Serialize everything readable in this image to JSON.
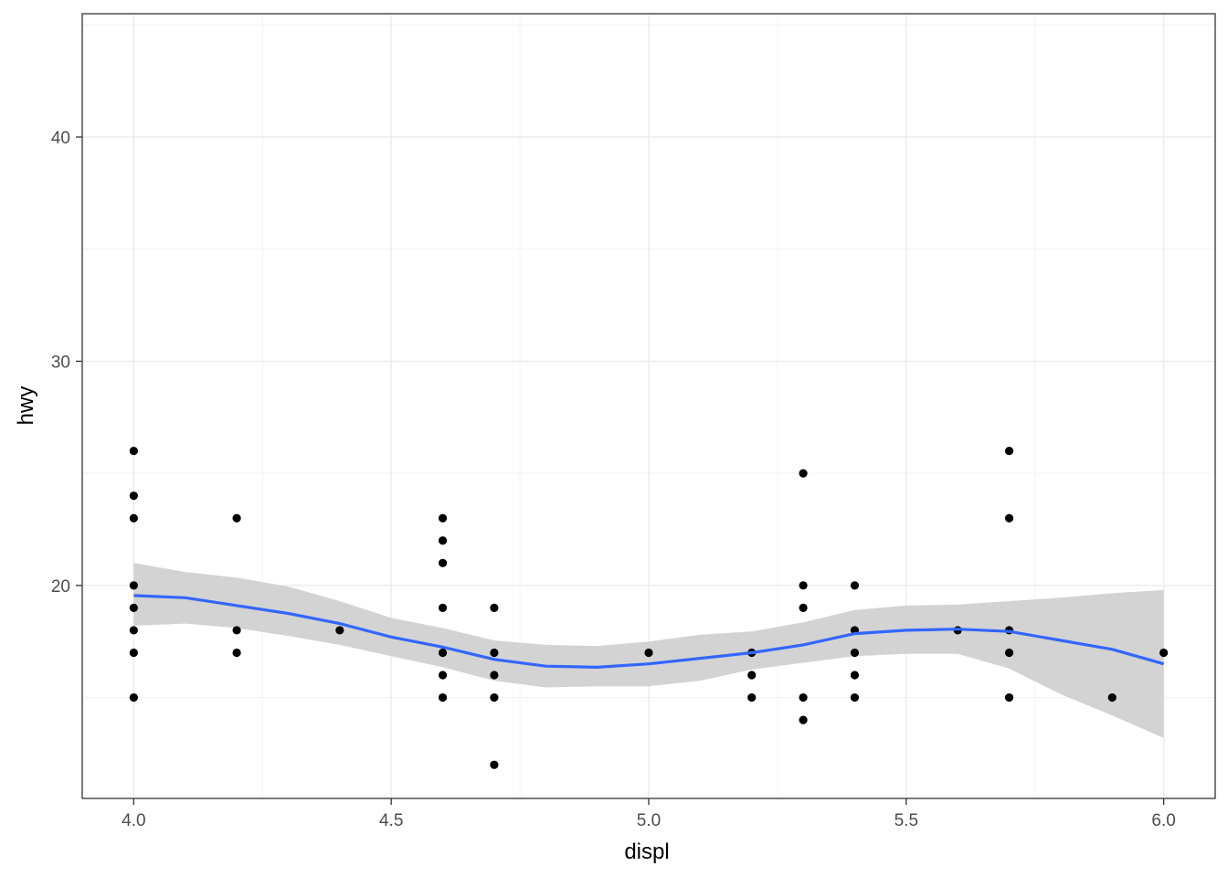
{
  "chart_data": {
    "type": "scatter",
    "xlabel": "displ",
    "ylabel": "hwy",
    "xlim": [
      3.9,
      6.1
    ],
    "ylim": [
      10.5,
      45.5
    ],
    "x_ticks": [
      4.0,
      4.5,
      5.0,
      5.5,
      6.0
    ],
    "x_tick_labels": [
      "4.0",
      "4.5",
      "5.0",
      "5.5",
      "6.0"
    ],
    "y_ticks": [
      20,
      30,
      40
    ],
    "y_tick_labels": [
      "20",
      "30",
      "40"
    ],
    "grid": true,
    "points": [
      {
        "x": 4.0,
        "y": 26
      },
      {
        "x": 4.0,
        "y": 24
      },
      {
        "x": 4.0,
        "y": 23
      },
      {
        "x": 4.0,
        "y": 20
      },
      {
        "x": 4.0,
        "y": 19
      },
      {
        "x": 4.0,
        "y": 18
      },
      {
        "x": 4.0,
        "y": 17
      },
      {
        "x": 4.0,
        "y": 15
      },
      {
        "x": 4.2,
        "y": 23
      },
      {
        "x": 4.2,
        "y": 18
      },
      {
        "x": 4.2,
        "y": 17
      },
      {
        "x": 4.4,
        "y": 18
      },
      {
        "x": 4.6,
        "y": 23
      },
      {
        "x": 4.6,
        "y": 22
      },
      {
        "x": 4.6,
        "y": 21
      },
      {
        "x": 4.6,
        "y": 19
      },
      {
        "x": 4.6,
        "y": 17
      },
      {
        "x": 4.6,
        "y": 16
      },
      {
        "x": 4.6,
        "y": 15
      },
      {
        "x": 4.7,
        "y": 19
      },
      {
        "x": 4.7,
        "y": 17
      },
      {
        "x": 4.7,
        "y": 16
      },
      {
        "x": 4.7,
        "y": 15
      },
      {
        "x": 4.7,
        "y": 12
      },
      {
        "x": 5.0,
        "y": 17
      },
      {
        "x": 5.2,
        "y": 17
      },
      {
        "x": 5.2,
        "y": 16
      },
      {
        "x": 5.2,
        "y": 15
      },
      {
        "x": 5.3,
        "y": 25
      },
      {
        "x": 5.3,
        "y": 20
      },
      {
        "x": 5.3,
        "y": 19
      },
      {
        "x": 5.3,
        "y": 15
      },
      {
        "x": 5.3,
        "y": 14
      },
      {
        "x": 5.4,
        "y": 20
      },
      {
        "x": 5.4,
        "y": 18
      },
      {
        "x": 5.4,
        "y": 17
      },
      {
        "x": 5.4,
        "y": 16
      },
      {
        "x": 5.4,
        "y": 15
      },
      {
        "x": 5.6,
        "y": 18
      },
      {
        "x": 5.7,
        "y": 26
      },
      {
        "x": 5.7,
        "y": 23
      },
      {
        "x": 5.7,
        "y": 18
      },
      {
        "x": 5.7,
        "y": 17
      },
      {
        "x": 5.7,
        "y": 15
      },
      {
        "x": 5.9,
        "y": 15
      },
      {
        "x": 6.0,
        "y": 17
      }
    ],
    "smooth": {
      "method": "loess",
      "color": "#3366FF",
      "band_color": "#D3D3D3",
      "curve": [
        {
          "x": 4.0,
          "y": 19.55,
          "lo": 18.2,
          "hi": 21.0
        },
        {
          "x": 4.1,
          "y": 19.45,
          "lo": 18.3,
          "hi": 20.6
        },
        {
          "x": 4.2,
          "y": 19.1,
          "lo": 18.1,
          "hi": 20.35
        },
        {
          "x": 4.3,
          "y": 18.75,
          "lo": 17.75,
          "hi": 19.95
        },
        {
          "x": 4.4,
          "y": 18.3,
          "lo": 17.35,
          "hi": 19.3
        },
        {
          "x": 4.5,
          "y": 17.7,
          "lo": 16.85,
          "hi": 18.55
        },
        {
          "x": 4.6,
          "y": 17.25,
          "lo": 16.35,
          "hi": 18.1
        },
        {
          "x": 4.7,
          "y": 16.7,
          "lo": 15.75,
          "hi": 17.55
        },
        {
          "x": 4.8,
          "y": 16.4,
          "lo": 15.45,
          "hi": 17.35
        },
        {
          "x": 4.9,
          "y": 16.35,
          "lo": 15.5,
          "hi": 17.3
        },
        {
          "x": 5.0,
          "y": 16.5,
          "lo": 15.5,
          "hi": 17.5
        },
        {
          "x": 5.1,
          "y": 16.75,
          "lo": 15.75,
          "hi": 17.8
        },
        {
          "x": 5.2,
          "y": 17.0,
          "lo": 16.25,
          "hi": 17.95
        },
        {
          "x": 5.3,
          "y": 17.35,
          "lo": 16.55,
          "hi": 18.35
        },
        {
          "x": 5.4,
          "y": 17.85,
          "lo": 16.85,
          "hi": 18.9
        },
        {
          "x": 5.5,
          "y": 18.0,
          "lo": 16.95,
          "hi": 19.1
        },
        {
          "x": 5.6,
          "y": 18.05,
          "lo": 16.95,
          "hi": 19.15
        },
        {
          "x": 5.7,
          "y": 17.95,
          "lo": 16.3,
          "hi": 19.3
        },
        {
          "x": 5.8,
          "y": 17.55,
          "lo": 15.15,
          "hi": 19.45
        },
        {
          "x": 5.9,
          "y": 17.15,
          "lo": 14.2,
          "hi": 19.65
        },
        {
          "x": 6.0,
          "y": 16.5,
          "lo": 13.2,
          "hi": 19.8
        }
      ]
    }
  }
}
